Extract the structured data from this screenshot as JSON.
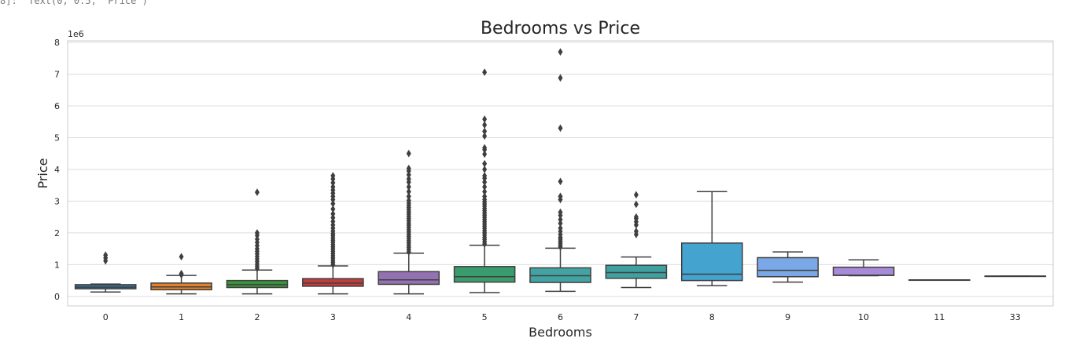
{
  "cell_output": {
    "text": "8]:  Text(0, 0.5, 'Price')"
  },
  "chart_data": {
    "type": "box",
    "title": "Bedrooms vs Price",
    "xlabel": "Bedrooms",
    "ylabel": "Price",
    "y_offset_label": "1e6",
    "ylim": [
      -0.3,
      8.05
    ],
    "yticks": [
      0,
      1,
      2,
      3,
      4,
      5,
      6,
      7,
      8
    ],
    "grid": true,
    "categories": [
      "0",
      "1",
      "2",
      "3",
      "4",
      "5",
      "6",
      "7",
      "8",
      "9",
      "10",
      "11",
      "33"
    ],
    "boxes": [
      {
        "category": "0",
        "color": "#3274a1",
        "min": 0.14,
        "q1": 0.24,
        "median": 0.29,
        "q3": 0.37,
        "max": 0.39,
        "outliers": [
          1.12,
          1.21,
          1.3
        ]
      },
      {
        "category": "1",
        "color": "#e1812c",
        "min": 0.08,
        "q1": 0.21,
        "median": 0.3,
        "q3": 0.42,
        "max": 0.66,
        "outliers": [
          0.68,
          0.72,
          1.25
        ]
      },
      {
        "category": "2",
        "color": "#3a923a",
        "min": 0.08,
        "q1": 0.28,
        "median": 0.37,
        "q3": 0.5,
        "max": 0.83,
        "outliers": [
          0.88,
          0.95,
          1.02,
          1.1,
          1.18,
          1.26,
          1.34,
          1.42,
          1.5,
          1.6,
          1.7,
          1.8,
          1.92,
          2.0,
          3.28
        ]
      },
      {
        "category": "3",
        "color": "#c03d3e",
        "min": 0.08,
        "q1": 0.32,
        "median": 0.42,
        "q3": 0.56,
        "max": 0.96,
        "outliers": [
          1.0,
          1.07,
          1.14,
          1.21,
          1.28,
          1.35,
          1.42,
          1.49,
          1.56,
          1.63,
          1.7,
          1.77,
          1.84,
          1.91,
          1.98,
          2.06,
          2.15,
          2.25,
          2.36,
          2.48,
          2.6,
          2.75,
          2.92,
          3.05,
          3.15,
          3.25,
          3.35,
          3.45,
          3.58,
          3.7,
          3.8
        ]
      },
      {
        "category": "4",
        "color": "#9372b2",
        "min": 0.08,
        "q1": 0.38,
        "median": 0.52,
        "q3": 0.78,
        "max": 1.36,
        "outliers": [
          1.4,
          1.47,
          1.54,
          1.61,
          1.68,
          1.75,
          1.82,
          1.89,
          1.96,
          2.03,
          2.1,
          2.17,
          2.24,
          2.31,
          2.38,
          2.45,
          2.52,
          2.59,
          2.66,
          2.73,
          2.8,
          2.87,
          2.94,
          3.02,
          3.15,
          3.3,
          3.45,
          3.6,
          3.7,
          3.83,
          3.95,
          4.03,
          4.5
        ]
      },
      {
        "category": "5",
        "color": "#3a9c6c",
        "min": 0.12,
        "q1": 0.45,
        "median": 0.62,
        "q3": 0.94,
        "max": 1.61,
        "outliers": [
          1.65,
          1.72,
          1.79,
          1.86,
          1.93,
          2.0,
          2.07,
          2.14,
          2.21,
          2.28,
          2.35,
          2.42,
          2.49,
          2.56,
          2.63,
          2.7,
          2.77,
          2.84,
          2.91,
          2.98,
          3.05,
          3.15,
          3.3,
          3.45,
          3.6,
          3.72,
          3.8,
          4.0,
          4.18,
          4.48,
          4.62,
          4.68,
          5.05,
          5.2,
          5.4,
          5.58,
          7.06
        ]
      },
      {
        "category": "6",
        "color": "#43a3a3",
        "min": 0.16,
        "q1": 0.44,
        "median": 0.65,
        "q3": 0.9,
        "max": 1.52,
        "outliers": [
          1.56,
          1.62,
          1.68,
          1.74,
          1.8,
          1.86,
          1.95,
          2.05,
          2.15,
          2.3,
          2.42,
          2.55,
          2.65,
          3.05,
          3.15,
          3.62,
          5.3,
          6.88,
          7.7
        ]
      },
      {
        "category": "7",
        "color": "#3fa0a0",
        "min": 0.28,
        "q1": 0.57,
        "median": 0.75,
        "q3": 0.98,
        "max": 1.24,
        "outliers": [
          1.95,
          2.05,
          2.25,
          2.35,
          2.45,
          2.5,
          2.9,
          3.2
        ]
      },
      {
        "category": "8",
        "color": "#44a3cf",
        "min": 0.34,
        "q1": 0.5,
        "median": 0.7,
        "q3": 1.68,
        "max": 3.3,
        "outliers": []
      },
      {
        "category": "9",
        "color": "#7aa8e6",
        "min": 0.45,
        "q1": 0.62,
        "median": 0.82,
        "q3": 1.22,
        "max": 1.4,
        "outliers": []
      },
      {
        "category": "10",
        "color": "#a88bd8",
        "min": 0.65,
        "q1": 0.66,
        "median": 0.67,
        "q3": 0.92,
        "max": 1.15,
        "outliers": []
      },
      {
        "category": "11",
        "color": "#d98bc8",
        "min": 0.52,
        "q1": 0.52,
        "median": 0.52,
        "q3": 0.52,
        "max": 0.52,
        "outliers": []
      },
      {
        "category": "33",
        "color": "#e38da4",
        "min": 0.64,
        "q1": 0.64,
        "median": 0.64,
        "q3": 0.64,
        "max": 0.64,
        "outliers": []
      }
    ]
  }
}
